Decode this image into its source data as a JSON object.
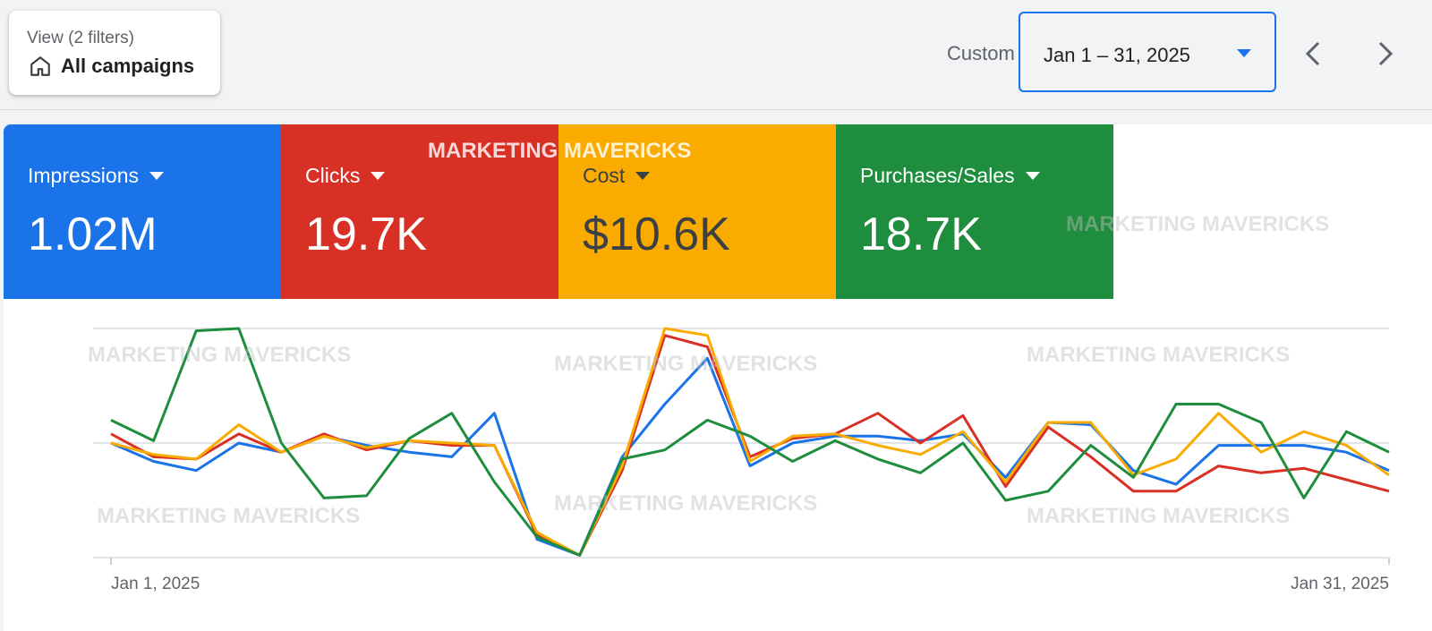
{
  "view": {
    "subtitle": "View (2 filters)",
    "title": "All campaigns"
  },
  "date": {
    "mode": "Custom",
    "range": "Jan 1 – 31, 2025"
  },
  "metrics": [
    {
      "label": "Impressions",
      "value": "1.02M",
      "color": "#1a73e8"
    },
    {
      "label": "Clicks",
      "value": "19.7K",
      "color": "#d93025"
    },
    {
      "label": "Cost",
      "value": "$10.6K",
      "color": "#f9ab00"
    },
    {
      "label": "Purchases/Sales",
      "value": "18.7K",
      "color": "#1e8e3e"
    }
  ],
  "watermark": "MARKETING MAVERICKS",
  "chart_data": {
    "type": "line",
    "x_tick_labels": [
      "Jan 1, 2025",
      "Jan 31, 2025"
    ],
    "x": [
      1,
      2,
      3,
      4,
      5,
      6,
      7,
      8,
      9,
      10,
      11,
      12,
      13,
      14,
      15,
      16,
      17,
      18,
      19,
      20,
      21,
      22,
      23,
      24,
      25,
      26,
      27,
      28,
      29,
      30,
      31
    ],
    "ylim": [
      0,
      1
    ],
    "grid": true,
    "note": "Series shown normalized to a common relative scale (no y-axis printed)",
    "series": [
      {
        "name": "Impressions",
        "color": "#1a73e8",
        "values": [
          0.5,
          0.42,
          0.38,
          0.5,
          0.46,
          0.53,
          0.49,
          0.46,
          0.44,
          0.63,
          0.08,
          0.01,
          0.44,
          0.67,
          0.87,
          0.4,
          0.5,
          0.53,
          0.53,
          0.51,
          0.54,
          0.35,
          0.59,
          0.58,
          0.38,
          0.32,
          0.49,
          0.49,
          0.49,
          0.46,
          0.38
        ]
      },
      {
        "name": "Clicks",
        "color": "#d93025",
        "values": [
          0.54,
          0.44,
          0.43,
          0.54,
          0.46,
          0.54,
          0.47,
          0.51,
          0.49,
          0.49,
          0.1,
          0.01,
          0.38,
          0.97,
          0.92,
          0.44,
          0.52,
          0.54,
          0.63,
          0.5,
          0.62,
          0.31,
          0.57,
          0.44,
          0.29,
          0.29,
          0.4,
          0.37,
          0.39,
          0.34,
          0.29
        ]
      },
      {
        "name": "Cost",
        "color": "#f9ab00",
        "values": [
          0.5,
          0.45,
          0.43,
          0.58,
          0.46,
          0.53,
          0.48,
          0.51,
          0.5,
          0.49,
          0.11,
          0.01,
          0.4,
          1.0,
          0.97,
          0.42,
          0.53,
          0.54,
          0.49,
          0.45,
          0.55,
          0.33,
          0.59,
          0.59,
          0.36,
          0.43,
          0.63,
          0.46,
          0.55,
          0.49,
          0.36
        ]
      },
      {
        "name": "Purchases/Sales",
        "color": "#1e8e3e",
        "values": [
          0.6,
          0.51,
          0.99,
          1.0,
          0.5,
          0.26,
          0.27,
          0.52,
          0.63,
          0.33,
          0.09,
          0.01,
          0.43,
          0.47,
          0.6,
          0.53,
          0.42,
          0.51,
          0.43,
          0.37,
          0.5,
          0.25,
          0.29,
          0.49,
          0.35,
          0.67,
          0.67,
          0.59,
          0.26,
          0.55,
          0.46
        ]
      }
    ]
  }
}
